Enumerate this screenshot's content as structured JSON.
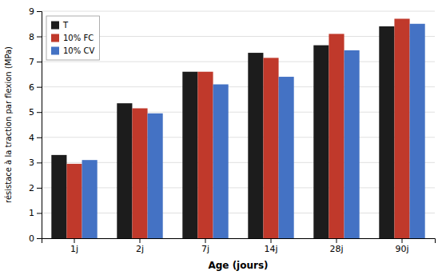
{
  "chart_data": {
    "type": "bar",
    "xlabel": "Age (jours)",
    "ylabel": "résistace à la traction par flexion (MPa)",
    "categories": [
      "1j",
      "2j",
      "7j",
      "14j",
      "28j",
      "90j"
    ],
    "series": [
      {
        "name": "T",
        "color": "#1c1c1c",
        "values": [
          3.3,
          5.35,
          6.6,
          7.35,
          7.65,
          8.4
        ]
      },
      {
        "name": "10% FC",
        "color": "#c0392b",
        "values": [
          2.95,
          5.15,
          6.6,
          7.15,
          8.1,
          8.7
        ]
      },
      {
        "name": "10% CV",
        "color": "#4472c4",
        "values": [
          3.1,
          4.95,
          6.1,
          6.4,
          7.45,
          8.5
        ]
      }
    ],
    "ylim": [
      0,
      9
    ],
    "yticks": [
      0,
      1,
      2,
      3,
      4,
      5,
      6,
      7,
      8,
      9
    ],
    "grid": true,
    "legend": "upper left"
  }
}
